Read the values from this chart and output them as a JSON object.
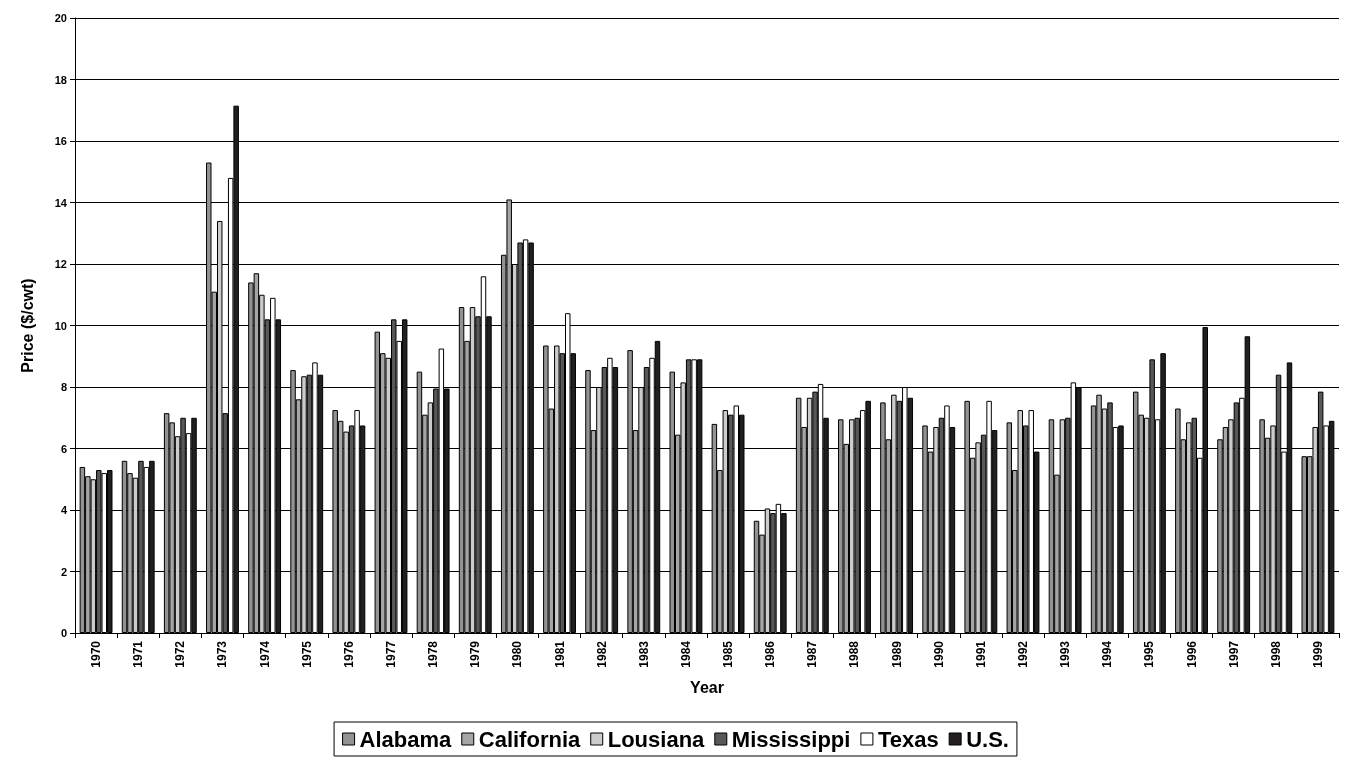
{
  "chart_data": {
    "type": "bar",
    "xlabel": "Year",
    "ylabel": "Price ($/cwt)",
    "categories": [
      "1970",
      "1971",
      "1972",
      "1973",
      "1974",
      "1975",
      "1976",
      "1977",
      "1978",
      "1979",
      "1980",
      "1981",
      "1982",
      "1983",
      "1984",
      "1985",
      "1986",
      "1987",
      "1988",
      "1989",
      "1990",
      "1991",
      "1992",
      "1993",
      "1994",
      "1995",
      "1996",
      "1997",
      "1998",
      "1999"
    ],
    "series": [
      {
        "name": "Alabama",
        "color": "#939393",
        "values": [
          5.4,
          5.6,
          7.15,
          15.3,
          11.4,
          8.55,
          7.25,
          9.8,
          8.5,
          10.6,
          12.3,
          9.35,
          8.55,
          9.2,
          8.5,
          6.8,
          3.65,
          7.65,
          6.95,
          7.5,
          6.75,
          7.55,
          6.85,
          6.95,
          7.4,
          7.85,
          7.3,
          6.3,
          6.95,
          5.75
        ]
      },
      {
        "name": "California",
        "color": "#a5a5a5",
        "values": [
          5.1,
          5.2,
          6.85,
          11.1,
          11.7,
          7.6,
          6.9,
          9.1,
          7.1,
          9.5,
          14.1,
          7.3,
          6.6,
          6.6,
          6.45,
          5.3,
          3.2,
          6.7,
          6.15,
          6.3,
          5.9,
          5.7,
          5.3,
          5.15,
          7.75,
          7.1,
          6.3,
          6.7,
          6.35,
          5.75
        ]
      },
      {
        "name": "Lousiana",
        "color": "#cccccc",
        "values": [
          5.0,
          5.05,
          6.4,
          13.4,
          11.0,
          8.35,
          6.55,
          8.95,
          7.5,
          10.6,
          12.0,
          9.35,
          8.0,
          8.0,
          8.15,
          7.25,
          4.05,
          7.65,
          6.95,
          7.75,
          6.7,
          6.2,
          7.25,
          6.95,
          7.3,
          7.0,
          6.85,
          6.95,
          6.75,
          6.7
        ]
      },
      {
        "name": "Mississippi",
        "color": "#58585a",
        "values": [
          5.3,
          5.6,
          7.0,
          7.15,
          10.2,
          8.4,
          6.75,
          10.2,
          7.95,
          10.3,
          12.7,
          9.1,
          8.65,
          8.65,
          8.9,
          7.1,
          3.9,
          7.85,
          7.0,
          7.55,
          7.0,
          6.45,
          6.75,
          7.0,
          7.5,
          8.9,
          7.0,
          7.5,
          8.4,
          7.85
        ]
      },
      {
        "name": "Texas",
        "color": "#ffffff",
        "values": [
          5.2,
          5.4,
          6.5,
          14.8,
          10.9,
          8.8,
          7.25,
          9.5,
          9.25,
          11.6,
          12.8,
          10.4,
          8.95,
          8.95,
          8.9,
          7.4,
          4.2,
          8.1,
          7.25,
          8.0,
          7.4,
          7.55,
          7.25,
          8.15,
          6.7,
          6.95,
          5.7,
          7.65,
          5.9,
          6.75
        ]
      },
      {
        "name": "U.S.",
        "color": "#231f20",
        "values": [
          5.3,
          5.6,
          7.0,
          17.15,
          10.2,
          8.4,
          6.75,
          10.2,
          7.95,
          10.3,
          12.7,
          9.1,
          8.65,
          9.5,
          8.9,
          7.1,
          3.9,
          7.0,
          7.55,
          7.65,
          6.7,
          6.6,
          5.9,
          8.0,
          6.75,
          9.1,
          9.95,
          9.65,
          8.8,
          6.9
        ]
      }
    ],
    "ylim": [
      0,
      20
    ],
    "yticks": [
      0,
      2,
      4,
      6,
      8,
      10,
      12,
      14,
      16,
      18,
      20
    ],
    "grid": "y",
    "legend": "bottom"
  }
}
